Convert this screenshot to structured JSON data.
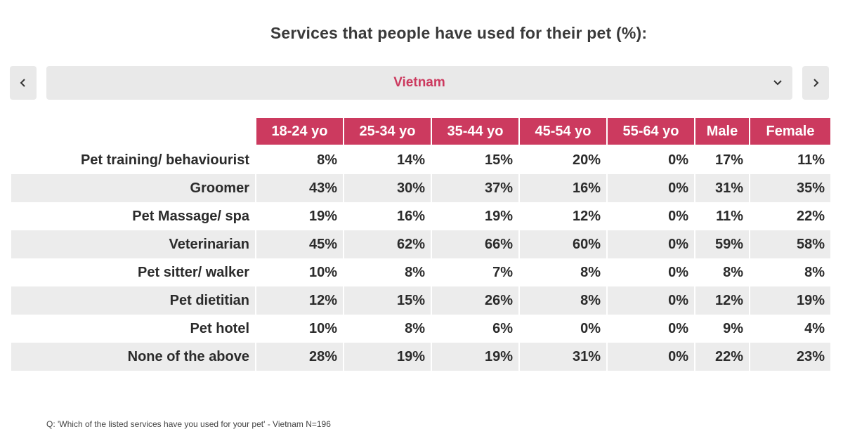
{
  "colors": {
    "accent": "#cc3a5f",
    "panel": "#e9e9e9",
    "row_shade": "#ececec"
  },
  "chart_data": {
    "type": "table",
    "title": "Services that people have used for their pet (%):",
    "country": "Vietnam",
    "columns": [
      "18-24 yo",
      "25-34 yo",
      "35-44 yo",
      "45-54 yo",
      "55-64 yo",
      "Male",
      "Female"
    ],
    "rows": [
      {
        "label": "Pet training/ behaviourist",
        "values": [
          "8%",
          "14%",
          "15%",
          "20%",
          "0%",
          "17%",
          "11%"
        ]
      },
      {
        "label": "Groomer",
        "values": [
          "43%",
          "30%",
          "37%",
          "16%",
          "0%",
          "31%",
          "35%"
        ]
      },
      {
        "label": "Pet Massage/ spa",
        "values": [
          "19%",
          "16%",
          "19%",
          "12%",
          "0%",
          "11%",
          "22%"
        ]
      },
      {
        "label": "Veterinarian",
        "values": [
          "45%",
          "62%",
          "66%",
          "60%",
          "0%",
          "59%",
          "58%"
        ]
      },
      {
        "label": "Pet sitter/ walker",
        "values": [
          "10%",
          "8%",
          "7%",
          "8%",
          "0%",
          "8%",
          "8%"
        ]
      },
      {
        "label": "Pet dietitian",
        "values": [
          "12%",
          "15%",
          "26%",
          "8%",
          "0%",
          "12%",
          "19%"
        ]
      },
      {
        "label": "Pet hotel",
        "values": [
          "10%",
          "8%",
          "6%",
          "0%",
          "0%",
          "9%",
          "4%"
        ]
      },
      {
        "label": "None of the above",
        "values": [
          "28%",
          "19%",
          "19%",
          "31%",
          "0%",
          "22%",
          "23%"
        ]
      }
    ],
    "footnote": "Q: 'Which of the listed services have you used for your pet' - Vietnam N=196"
  },
  "nav": {
    "prev_icon": "chevron-left-icon",
    "next_icon": "chevron-right-icon",
    "dropdown_icon": "chevron-down-icon"
  }
}
